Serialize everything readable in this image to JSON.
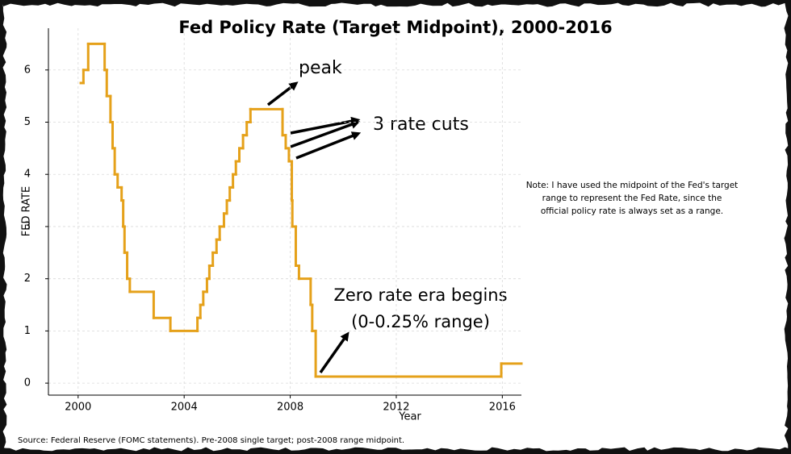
{
  "chart_data": {
    "type": "step",
    "title": "Fed Policy Rate (Target Midpoint), 2000-2016",
    "x_label": "Year",
    "y_label": "FED RATE",
    "x": [
      2000.1,
      2000.2,
      2000.38,
      2001.0,
      2001.08,
      2001.22,
      2001.3,
      2001.38,
      2001.49,
      2001.64,
      2001.7,
      2001.75,
      2001.85,
      2001.95,
      2002.85,
      2003.48,
      2004.5,
      2004.61,
      2004.72,
      2004.86,
      2004.95,
      2005.08,
      2005.22,
      2005.34,
      2005.5,
      2005.61,
      2005.72,
      2005.84,
      2005.95,
      2006.08,
      2006.22,
      2006.36,
      2006.5,
      2007.71,
      2007.83,
      2007.95,
      2008.06,
      2008.08,
      2008.21,
      2008.33,
      2008.77,
      2008.83,
      2008.96,
      2015.96
    ],
    "series": [
      {
        "name": "Fed Rate",
        "color": "#e5a11a",
        "values": [
          5.75,
          6.0,
          6.5,
          6.0,
          5.5,
          5.0,
          4.5,
          4.0,
          3.75,
          3.5,
          3.0,
          2.5,
          2.0,
          1.75,
          1.25,
          1.0,
          1.25,
          1.5,
          1.75,
          2.0,
          2.25,
          2.5,
          2.75,
          3.0,
          3.25,
          3.5,
          3.75,
          4.0,
          4.25,
          4.5,
          4.75,
          5.0,
          5.25,
          4.75,
          4.5,
          4.25,
          3.5,
          3.0,
          2.25,
          2.0,
          1.5,
          1.0,
          0.125,
          0.375
        ]
      }
    ],
    "xlim": [
      1998.88,
      2016.72
    ],
    "ylim": [
      -0.23,
      6.8
    ],
    "xticks": [
      2000,
      2004,
      2008,
      2012,
      2016
    ],
    "yticks": [
      0,
      1,
      2,
      3,
      4,
      5,
      6
    ],
    "grid": true,
    "annotations": {
      "peak": "peak",
      "cuts": "3 rate cuts",
      "zero": [
        "Zero rate era begins",
        "(0-0.25% range)"
      ]
    },
    "note": [
      "Note: I have used the midpoint of the Fed's target",
      "range to represent the Fed Rate, since the",
      "official policy rate is always set as a range."
    ],
    "source": "Source: Federal Reserve (FOMC statements). Pre-2008 single target; post-2008 range midpoint."
  }
}
